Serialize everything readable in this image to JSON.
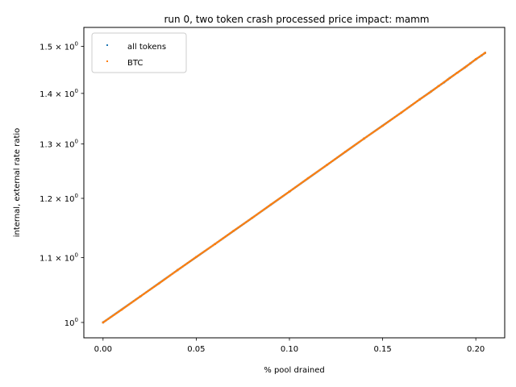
{
  "chart_data": {
    "type": "scatter",
    "title": "run 0, two token crash processed price impact: mamm",
    "xlabel": "% pool drained",
    "ylabel": "internal, external rate ratio",
    "xlim": [
      -0.0103,
      0.2155
    ],
    "ylim": [
      0.9777,
      1.5425
    ],
    "yscale": "log",
    "grid": false,
    "legend_position": "top-left",
    "x_ticks": [
      {
        "value": 0.0,
        "label": "0.00"
      },
      {
        "value": 0.05,
        "label": "0.05"
      },
      {
        "value": 0.1,
        "label": "0.10"
      },
      {
        "value": 0.15,
        "label": "0.15"
      },
      {
        "value": 0.2,
        "label": "0.20"
      }
    ],
    "y_ticks": [
      {
        "value": 1.0,
        "base": "10",
        "exp": "0"
      },
      {
        "value": 1.1,
        "base": "1.1 × 10",
        "exp": "0"
      },
      {
        "value": 1.2,
        "base": "1.2 × 10",
        "exp": "0"
      },
      {
        "value": 1.3,
        "base": "1.3 × 10",
        "exp": "0"
      },
      {
        "value": 1.4,
        "base": "1.4 × 10",
        "exp": "0"
      },
      {
        "value": 1.5,
        "base": "1.5 × 10",
        "exp": "0"
      }
    ],
    "series": [
      {
        "name": "all tokens",
        "color": "#1f77b4",
        "x": [
          0.0,
          0.02,
          0.04,
          0.06,
          0.08,
          0.1,
          0.12,
          0.14,
          0.16,
          0.17,
          0.176,
          0.18,
          0.183,
          0.186,
          0.19,
          0.194,
          0.197,
          0.2,
          0.203,
          0.205
        ],
        "y": [
          1.0,
          1.039,
          1.08,
          1.122,
          1.166,
          1.212,
          1.26,
          1.31,
          1.361,
          1.388,
          1.404,
          1.415,
          1.423,
          1.432,
          1.443,
          1.454,
          1.463,
          1.472,
          1.48,
          1.486
        ]
      },
      {
        "name": "BTC",
        "color": "#ff7f0e",
        "x": [
          0.0,
          0.01,
          0.02,
          0.03,
          0.04,
          0.05,
          0.06,
          0.07,
          0.08,
          0.09,
          0.1,
          0.11,
          0.12,
          0.13,
          0.14,
          0.15,
          0.16,
          0.17,
          0.175,
          0.18,
          0.185,
          0.19,
          0.195,
          0.2,
          0.205
        ],
        "y": [
          1.0,
          1.019,
          1.039,
          1.059,
          1.08,
          1.101,
          1.122,
          1.144,
          1.166,
          1.189,
          1.212,
          1.236,
          1.26,
          1.285,
          1.31,
          1.335,
          1.361,
          1.388,
          1.401,
          1.415,
          1.429,
          1.443,
          1.457,
          1.472,
          1.486
        ]
      }
    ]
  }
}
